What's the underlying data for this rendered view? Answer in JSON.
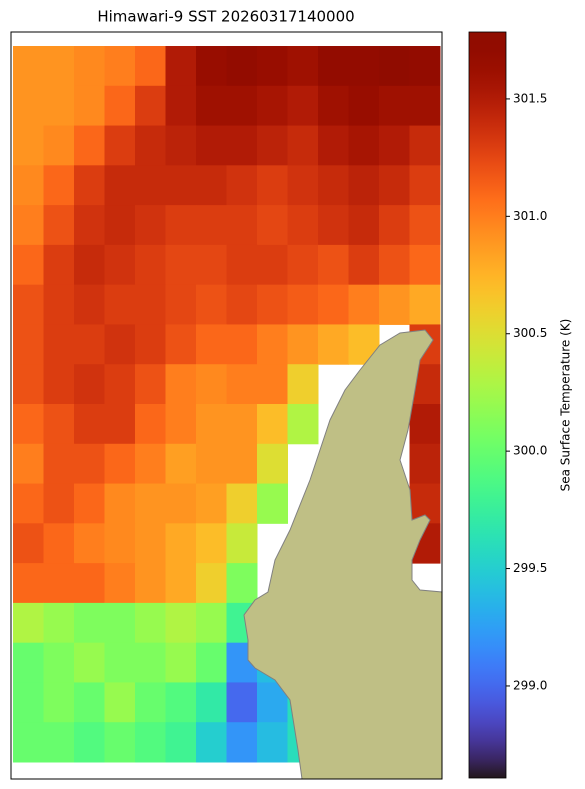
{
  "chart_data": {
    "type": "heatmap",
    "title": "Himawari-9 SST 20260317140000",
    "colorbar_label": "Sea Surface Temperature (K)",
    "colormap": "turbo",
    "clim": [
      298.608,
      301.785
    ],
    "cticks": [
      {
        "value": 299.0,
        "label": "299.0"
      },
      299.5,
      {
        "value": 300.0,
        "label": "300.0"
      },
      300.5,
      {
        "value": 301.0,
        "label": "301.0"
      },
      301.5
    ],
    "values": [
      [
        300.9,
        300.9,
        300.95,
        301.0,
        301.1,
        301.5,
        301.65,
        301.7,
        301.65,
        301.6,
        301.7,
        301.7,
        301.75,
        301.7
      ],
      [
        300.9,
        300.9,
        300.95,
        301.1,
        301.3,
        301.5,
        301.6,
        301.6,
        301.55,
        301.5,
        301.6,
        301.65,
        301.6,
        301.6
      ],
      [
        300.9,
        300.95,
        301.1,
        301.3,
        301.4,
        301.45,
        301.5,
        301.5,
        301.45,
        301.4,
        301.5,
        301.55,
        301.5,
        301.4
      ],
      [
        300.95,
        301.1,
        301.3,
        301.4,
        301.4,
        301.4,
        301.4,
        301.35,
        301.3,
        301.35,
        301.4,
        301.45,
        301.4,
        301.3
      ],
      [
        301.0,
        301.2,
        301.35,
        301.4,
        301.35,
        301.3,
        301.3,
        301.3,
        301.25,
        301.3,
        301.35,
        301.4,
        301.3,
        301.2
      ],
      [
        301.1,
        301.3,
        301.4,
        301.35,
        301.3,
        301.25,
        301.25,
        301.3,
        301.3,
        301.25,
        301.2,
        301.3,
        301.2,
        301.1
      ],
      [
        301.2,
        301.3,
        301.35,
        301.3,
        301.3,
        301.25,
        301.2,
        301.25,
        301.2,
        301.15,
        301.1,
        301.0,
        300.9,
        300.8
      ],
      [
        301.2,
        301.3,
        301.3,
        301.35,
        301.3,
        301.2,
        301.1,
        301.1,
        301.0,
        300.9,
        300.8,
        300.7,
        null,
        301.3
      ],
      [
        301.2,
        301.3,
        301.35,
        301.3,
        301.2,
        301.0,
        300.95,
        301.0,
        301.0,
        300.6,
        null,
        null,
        null,
        301.4
      ],
      [
        301.1,
        301.2,
        301.3,
        301.3,
        301.1,
        301.0,
        300.9,
        300.9,
        300.7,
        300.3,
        null,
        null,
        null,
        301.5
      ],
      [
        301.0,
        301.2,
        301.2,
        301.1,
        301.0,
        300.85,
        300.9,
        300.9,
        300.5,
        null,
        null,
        null,
        null,
        301.45
      ],
      [
        301.1,
        301.2,
        301.1,
        300.95,
        300.9,
        300.9,
        300.85,
        300.6,
        300.2,
        null,
        null,
        null,
        null,
        301.4
      ],
      [
        301.2,
        301.1,
        301.0,
        300.95,
        300.9,
        300.8,
        300.7,
        300.4,
        null,
        null,
        null,
        null,
        null,
        301.5
      ],
      [
        301.1,
        301.1,
        301.1,
        301.0,
        300.9,
        300.8,
        300.6,
        300.1,
        null,
        null,
        null,
        null,
        null,
        null
      ],
      [
        300.3,
        300.2,
        300.1,
        300.1,
        300.2,
        300.3,
        300.2,
        299.8,
        null,
        null,
        null,
        null,
        null,
        null
      ],
      [
        300.0,
        300.1,
        300.2,
        300.1,
        300.1,
        300.2,
        300.0,
        299.2,
        299.4,
        null,
        null,
        null,
        null,
        null
      ],
      [
        300.0,
        300.1,
        300.0,
        300.2,
        300.0,
        299.9,
        299.7,
        299.0,
        299.3,
        299.6,
        null,
        null,
        null,
        null
      ],
      [
        300.0,
        300.0,
        299.9,
        300.0,
        299.9,
        299.8,
        299.5,
        299.2,
        299.4,
        299.6,
        null,
        null,
        null,
        null
      ]
    ]
  }
}
